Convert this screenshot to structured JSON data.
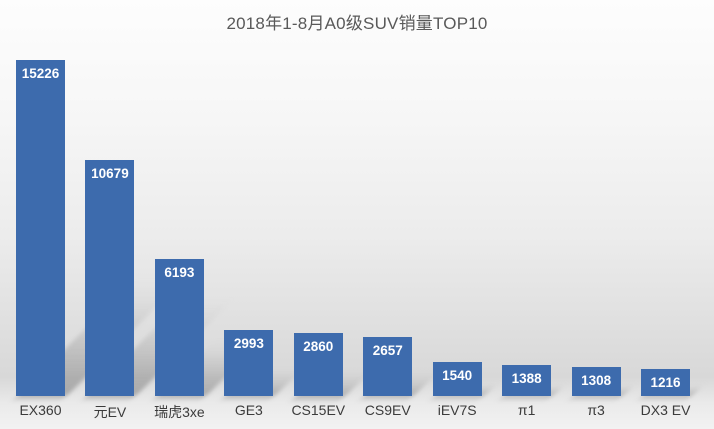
{
  "title": "2018年1-8月A0级SUV销量TOP10",
  "chart_data": {
    "type": "bar",
    "title": "2018年1-8月A0级SUV销量TOP10",
    "categories": [
      "EX360",
      "元EV",
      "瑞虎3xe",
      "GE3",
      "CS15EV",
      "CS9EV",
      "iEV7S",
      "π1",
      "π3",
      "DX3 EV"
    ],
    "values": [
      15226,
      10679,
      6193,
      2993,
      2860,
      2657,
      1540,
      1388,
      1308,
      1216
    ],
    "xlabel": "",
    "ylabel": "",
    "ylim": [
      0,
      15226
    ],
    "grid": false,
    "legend": false,
    "axes_visible": false,
    "value_labels_position": "inside-top",
    "bar_color": "#3d6bad",
    "value_label_color": "#ffffff",
    "category_label_color": "#3b3b3b",
    "title_color": "#595959",
    "shadow_style": "perspective diagonal floor shadow, lower-right, soft gray",
    "background_style": "vertical gradient, white top to gray floor"
  }
}
